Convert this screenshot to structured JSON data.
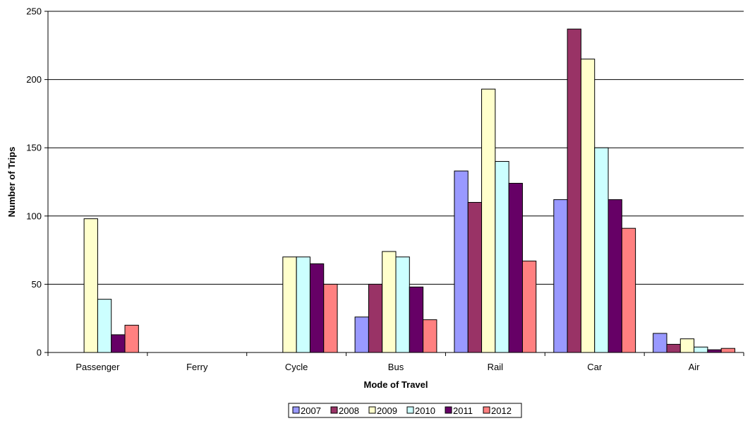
{
  "chart_data": {
    "type": "bar",
    "title": "",
    "xlabel": "Mode of Travel",
    "ylabel": "Number of Trips",
    "ylim": [
      0,
      250
    ],
    "yticks": [
      0,
      50,
      100,
      150,
      200,
      250
    ],
    "grid": true,
    "legend_position": "bottom",
    "categories": [
      "Passenger",
      "Ferry",
      "Cycle",
      "Bus",
      "Rail",
      "Car",
      "Air"
    ],
    "series": [
      {
        "name": "2007",
        "color": "#9999ff",
        "values": [
          0,
          0,
          0,
          26,
          133,
          112,
          14
        ]
      },
      {
        "name": "2008",
        "color": "#993366",
        "values": [
          0,
          0,
          0,
          50,
          110,
          237,
          6
        ]
      },
      {
        "name": "2009",
        "color": "#ffffcc",
        "values": [
          98,
          0,
          70,
          74,
          193,
          215,
          10
        ]
      },
      {
        "name": "2010",
        "color": "#ccffff",
        "values": [
          39,
          0,
          70,
          70,
          140,
          150,
          4
        ]
      },
      {
        "name": "2011",
        "color": "#660066",
        "values": [
          13,
          0,
          65,
          48,
          124,
          112,
          2
        ]
      },
      {
        "name": "2012",
        "color": "#ff8080",
        "values": [
          20,
          0,
          50,
          24,
          67,
          91,
          3
        ]
      }
    ]
  }
}
